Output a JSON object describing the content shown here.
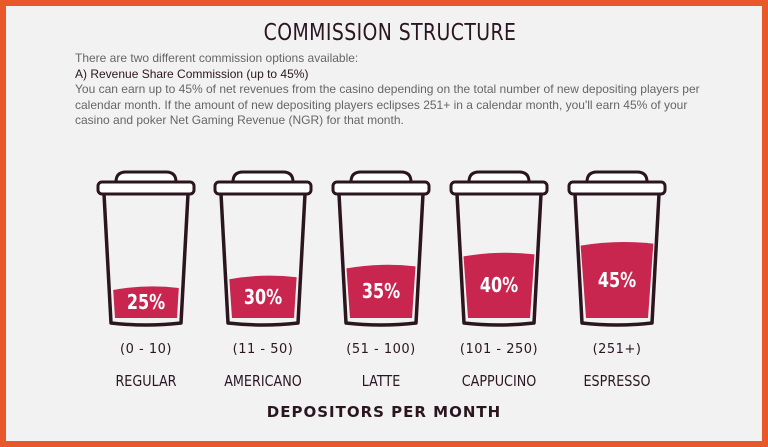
{
  "title": "COMMISSION STRUCTURE",
  "intro": {
    "line1": "There are two different commission options available:",
    "subheading": "A) Revenue Share Commission (up to 45%)",
    "body": "You can earn up to 45% of net revenues from the casino depending on the total number of new depositing players per calendar month. If the amount of new depositing players eclipses 251+ in a calendar month, you'll earn 45% of your casino and poker Net Gaming Revenue (NGR) for that month."
  },
  "colors": {
    "border": "#e8582a",
    "fill": "#c8264f",
    "outline": "#2b1620"
  },
  "tiers": [
    {
      "percent_label": "25%",
      "fill_fraction": 0.25,
      "range": "(0 - 10)",
      "name": "REGULAR"
    },
    {
      "percent_label": "30%",
      "fill_fraction": 0.34,
      "range": "(11 - 50)",
      "name": "AMERICANO"
    },
    {
      "percent_label": "35%",
      "fill_fraction": 0.43,
      "range": "(51 - 100)",
      "name": "LATTE"
    },
    {
      "percent_label": "40%",
      "fill_fraction": 0.53,
      "range": "(101 - 250)",
      "name": "CAPPUCINO"
    },
    {
      "percent_label": "45%",
      "fill_fraction": 0.62,
      "range": "(251+)",
      "name": "ESPRESSO"
    }
  ],
  "footer": "DEPOSITORS PER MONTH"
}
